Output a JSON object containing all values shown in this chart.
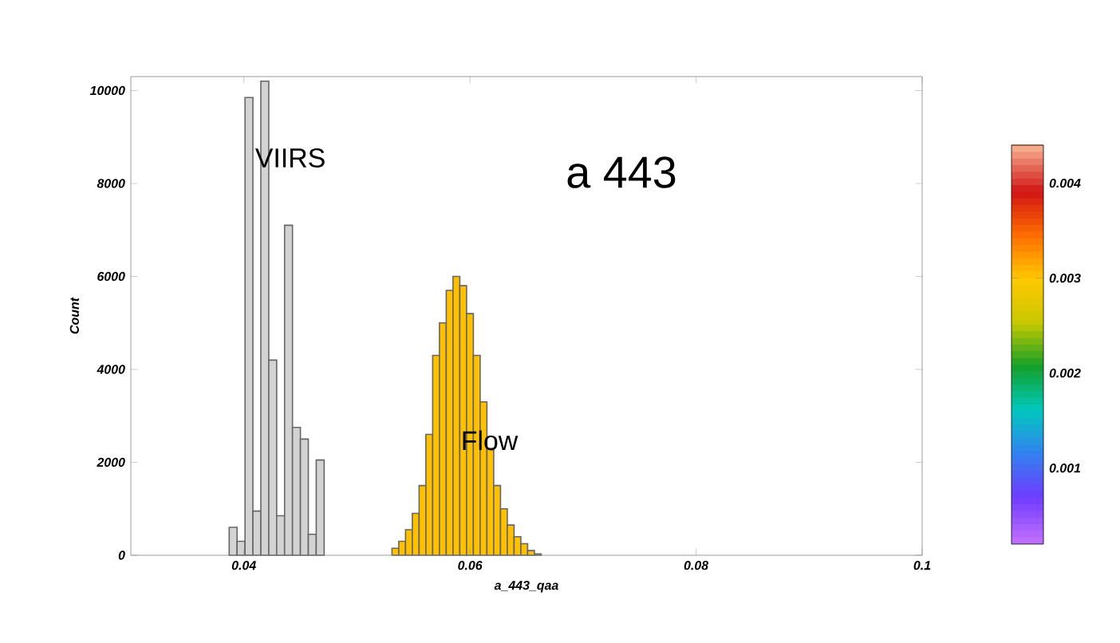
{
  "chart_data": {
    "type": "histogram",
    "title": "a 443",
    "xlabel": "a_443_qaa",
    "ylabel": "Count",
    "bins": [
      0.0387,
      0.0394,
      0.0401,
      0.0408,
      0.0415,
      0.0422,
      0.0429,
      0.0436,
      0.0443,
      0.045,
      0.0457,
      0.0464,
      0.0471,
      0.0531,
      0.0537,
      0.0543,
      0.0549,
      0.0555,
      0.0561,
      0.0567,
      0.0573,
      0.0579,
      0.0585,
      0.0591,
      0.0597,
      0.0603,
      0.0609,
      0.0615,
      0.0621,
      0.0627,
      0.0633,
      0.0639,
      0.0645,
      0.0651,
      0.0657,
      0.0663
    ],
    "series": [
      {
        "name": "VIIRS",
        "color": "#d3d3d3",
        "values": [
          600,
          300,
          9850,
          950,
          10200,
          4200,
          850,
          7100,
          2750,
          2500,
          450,
          2050,
          null,
          null,
          null,
          null,
          null,
          null,
          null,
          null,
          null,
          null,
          null,
          null,
          null,
          null,
          null,
          null,
          null,
          null,
          null,
          null,
          null,
          null,
          null
        ]
      },
      {
        "name": "Flow",
        "color": "#ffc000",
        "values": [
          null,
          null,
          null,
          null,
          null,
          null,
          null,
          null,
          null,
          null,
          null,
          null,
          null,
          150,
          300,
          550,
          900,
          1500,
          2600,
          4300,
          5000,
          5700,
          6000,
          5800,
          5200,
          4300,
          3300,
          2300,
          1500,
          1000,
          650,
          400,
          250,
          100,
          30
        ]
      }
    ],
    "xlim": [
      0.03,
      0.1
    ],
    "ylim": [
      0,
      10300
    ],
    "xticks": [
      {
        "value": 0.04,
        "label": "0.04"
      },
      {
        "value": 0.06,
        "label": "0.06"
      },
      {
        "value": 0.08,
        "label": "0.08"
      },
      {
        "value": 0.1,
        "label": "0.1"
      }
    ],
    "yticks": [
      {
        "value": 0,
        "label": "0"
      },
      {
        "value": 2000,
        "label": "2000"
      },
      {
        "value": 4000,
        "label": "4000"
      },
      {
        "value": 6000,
        "label": "6000"
      },
      {
        "value": 8000,
        "label": "8000"
      },
      {
        "value": 10000,
        "label": "10000"
      }
    ],
    "clim": [
      0.0002,
      0.0044
    ],
    "cticks": [
      {
        "value": 0.001,
        "label": "0.001"
      },
      {
        "value": 0.002,
        "label": "0.002"
      },
      {
        "value": 0.003,
        "label": "0.003"
      },
      {
        "value": 0.004,
        "label": "0.004"
      }
    ],
    "grid": false,
    "legend": false
  }
}
